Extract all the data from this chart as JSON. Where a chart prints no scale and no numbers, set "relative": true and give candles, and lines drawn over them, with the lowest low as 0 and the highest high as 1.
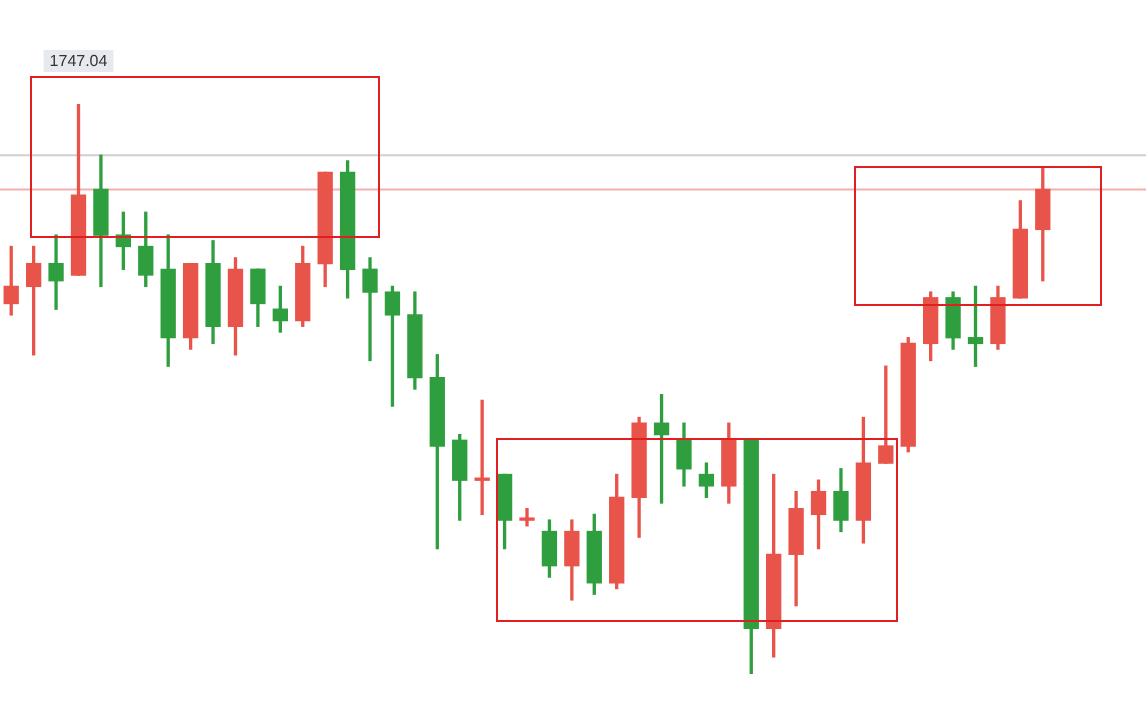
{
  "chart_data": {
    "type": "candlestick",
    "relative": true,
    "categories": [
      null,
      null,
      null,
      null,
      null,
      null,
      null,
      null,
      null,
      null,
      null,
      null,
      null,
      null,
      null,
      null,
      null,
      null,
      null,
      null,
      null,
      null,
      null,
      null,
      null,
      null,
      null,
      null,
      null,
      null,
      null,
      null,
      null,
      null,
      null,
      null,
      null,
      null,
      null,
      null,
      null,
      null,
      null,
      null,
      null,
      null,
      null
    ],
    "ohlc": [
      [
        0.65,
        0.75,
        0.63,
        0.68
      ],
      [
        0.68,
        0.75,
        0.56,
        0.72
      ],
      [
        0.72,
        0.77,
        0.64,
        0.69
      ],
      [
        0.7,
        1,
        0.7,
        0.84
      ],
      [
        0.85,
        0.91,
        0.68,
        0.77
      ],
      [
        0.77,
        0.81,
        0.71,
        0.75
      ],
      [
        0.75,
        0.81,
        0.68,
        0.7
      ],
      [
        0.71,
        0.77,
        0.54,
        0.59
      ],
      [
        0.59,
        0.72,
        0.57,
        0.72
      ],
      [
        0.72,
        0.76,
        0.58,
        0.61
      ],
      [
        0.61,
        0.73,
        0.56,
        0.71
      ],
      [
        0.71,
        0.71,
        0.61,
        0.65
      ],
      [
        0.64,
        0.68,
        0.6,
        0.62
      ],
      [
        0.62,
        0.75,
        0.61,
        0.72
      ],
      [
        0.72,
        0.88,
        0.68,
        0.88
      ],
      [
        0.88,
        0.9,
        0.66,
        0.71
      ],
      [
        0.71,
        0.73,
        0.55,
        0.67
      ],
      [
        0.67,
        0.68,
        0.47,
        0.63
      ],
      [
        0.63,
        0.67,
        0.5,
        0.52
      ],
      [
        0.52,
        0.56,
        0.22,
        0.4
      ],
      [
        0.41,
        0.42,
        0.27,
        0.34
      ],
      [
        0.34,
        0.48,
        0.28,
        0.34
      ],
      [
        0.35,
        0.35,
        0.22,
        0.27
      ],
      [
        0.27,
        0.29,
        0.26,
        0.27
      ],
      [
        0.25,
        0.27,
        0.17,
        0.19
      ],
      [
        0.19,
        0.27,
        0.13,
        0.25
      ],
      [
        0.25,
        0.28,
        0.14,
        0.16
      ],
      [
        0.16,
        0.35,
        0.15,
        0.31
      ],
      [
        0.31,
        0.45,
        0.24,
        0.44
      ],
      [
        0.44,
        0.49,
        0.3,
        0.42
      ],
      [
        0.41,
        0.44,
        0.33,
        0.36
      ],
      [
        0.35,
        0.37,
        0.31,
        0.33
      ],
      [
        0.33,
        0.44,
        0.3,
        0.41
      ],
      [
        0.41,
        0.41,
        0,
        0.08
      ],
      [
        0.08,
        0.35,
        0.03,
        0.21
      ],
      [
        0.21,
        0.32,
        0.12,
        0.29
      ],
      [
        0.28,
        0.34,
        0.22,
        0.32
      ],
      [
        0.32,
        0.36,
        0.25,
        0.27
      ],
      [
        0.27,
        0.45,
        0.23,
        0.37
      ],
      [
        0.37,
        0.54,
        0.37,
        0.4
      ],
      [
        0.4,
        0.59,
        0.39,
        0.58
      ],
      [
        0.58,
        0.67,
        0.55,
        0.66
      ],
      [
        0.66,
        0.67,
        0.57,
        0.59
      ],
      [
        0.59,
        0.68,
        0.54,
        0.58
      ],
      [
        0.58,
        0.68,
        0.57,
        0.66
      ],
      [
        0.66,
        0.83,
        0.66,
        0.78
      ],
      [
        0.78,
        0.89,
        0.69,
        0.85
      ]
    ],
    "colors": [
      "#e8534a",
      "#e8534a",
      "#2e9e3e",
      "#e8534a",
      "#2e9e3e",
      "#2e9e3e",
      "#2e9e3e",
      "#2e9e3e",
      "#e8534a",
      "#2e9e3e",
      "#e8534a",
      "#2e9e3e",
      "#2e9e3e",
      "#e8534a",
      "#e8534a",
      "#2e9e3e",
      "#2e9e3e",
      "#2e9e3e",
      "#2e9e3e",
      "#2e9e3e",
      "#2e9e3e",
      "#e8534a",
      "#2e9e3e",
      "#e8534a",
      "#2e9e3e",
      "#e8534a",
      "#2e9e3e",
      "#e8534a",
      "#e8534a",
      "#2e9e3e",
      "#2e9e3e",
      "#2e9e3e",
      "#e8534a",
      "#2e9e3e",
      "#e8534a",
      "#e8534a",
      "#e8534a",
      "#2e9e3e",
      "#e8534a",
      "#e8534a",
      "#e8534a",
      "#e8534a",
      "#2e9e3e",
      "#2e9e3e",
      "#e8534a",
      "#e8534a",
      "#e8534a"
    ],
    "ref_lines": [
      {
        "axis": "y",
        "value": 0.91,
        "color": "#cfcfcf"
      },
      {
        "axis": "y",
        "value": 0.85,
        "color": "#f2b0b0"
      }
    ],
    "annotations": [
      "1747.04"
    ]
  }
}
